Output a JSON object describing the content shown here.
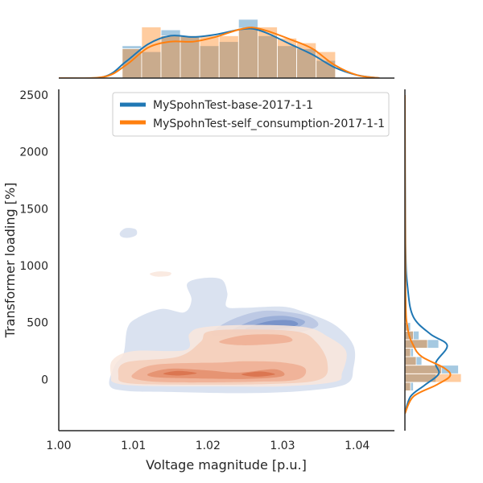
{
  "chart_data": {
    "type": "jointplot-kde",
    "xlabel": "Voltage magnitude [p.u.]",
    "ylabel": "Transformer loading [%]",
    "xlim": [
      1.0,
      1.045
    ],
    "ylim": [
      -450,
      2550
    ],
    "x_ticks": [
      1.0,
      1.01,
      1.02,
      1.03,
      1.04
    ],
    "x_tick_labels": [
      "1.00",
      "1.01",
      "1.02",
      "1.03",
      "1.04"
    ],
    "y_ticks": [
      0,
      500,
      1000,
      1500,
      2000,
      2500
    ],
    "y_tick_labels": [
      "0",
      "500",
      "1000",
      "1500",
      "2000",
      "2500"
    ],
    "legend": {
      "position": "top-center"
    },
    "grid": false,
    "series": [
      {
        "name": "MySpohnTest-base-2017-1-1",
        "color": "#1f77b4",
        "kde_color": "#4a6fb5",
        "x_hist": {
          "bin_edges": [
            1.0085,
            1.0111,
            1.0137,
            1.0163,
            1.0189,
            1.0215,
            1.0241,
            1.0267,
            1.0293,
            1.0319,
            1.0345,
            1.0371
          ],
          "heights": [
            0.55,
            0.45,
            0.82,
            0.72,
            0.55,
            0.62,
            1.0,
            0.72,
            0.55,
            0.5,
            0.3
          ]
        },
        "y_hist": {
          "bin_edges": [
            -100,
            -25,
            50,
            125,
            200,
            275,
            350,
            425,
            500
          ],
          "widths": [
            0.15,
            0.55,
            0.95,
            0.3,
            0.15,
            0.6,
            0.25,
            0.1
          ]
        },
        "x_kde": [
          [
            1.0,
            0.0
          ],
          [
            1.006,
            0.02
          ],
          [
            1.009,
            0.28
          ],
          [
            1.012,
            0.58
          ],
          [
            1.015,
            0.72
          ],
          [
            1.018,
            0.7
          ],
          [
            1.021,
            0.74
          ],
          [
            1.024,
            0.82
          ],
          [
            1.026,
            0.84
          ],
          [
            1.028,
            0.76
          ],
          [
            1.031,
            0.58
          ],
          [
            1.034,
            0.4
          ],
          [
            1.037,
            0.18
          ],
          [
            1.04,
            0.05
          ],
          [
            1.043,
            0.0
          ]
        ],
        "y_kde": [
          [
            -300,
            0.0
          ],
          [
            -150,
            0.1
          ],
          [
            -50,
            0.35
          ],
          [
            50,
            0.6
          ],
          [
            150,
            0.55
          ],
          [
            300,
            0.75
          ],
          [
            400,
            0.45
          ],
          [
            550,
            0.15
          ],
          [
            800,
            0.05
          ],
          [
            1200,
            0.01
          ],
          [
            2500,
            0.0
          ]
        ]
      },
      {
        "name": "MySpohnTest-self_consumption-2017-1-1",
        "color": "#ff7f0e",
        "kde_color": "#e3764a",
        "x_hist": {
          "bin_edges": [
            1.0085,
            1.0111,
            1.0137,
            1.0163,
            1.0189,
            1.0215,
            1.0241,
            1.0267,
            1.0293,
            1.0319,
            1.0345,
            1.0371
          ],
          "heights": [
            0.5,
            0.87,
            0.72,
            0.72,
            0.72,
            0.72,
            0.85,
            0.87,
            0.68,
            0.6,
            0.45
          ]
        },
        "y_hist": {
          "bin_edges": [
            -100,
            -25,
            50,
            125,
            200,
            275,
            350,
            425,
            500
          ],
          "widths": [
            0.1,
            1.0,
            0.65,
            0.2,
            0.1,
            0.4,
            0.15,
            0.05
          ]
        },
        "x_kde": [
          [
            1.0,
            0.0
          ],
          [
            1.006,
            0.02
          ],
          [
            1.009,
            0.22
          ],
          [
            1.012,
            0.52
          ],
          [
            1.015,
            0.62
          ],
          [
            1.018,
            0.62
          ],
          [
            1.021,
            0.7
          ],
          [
            1.024,
            0.82
          ],
          [
            1.026,
            0.86
          ],
          [
            1.028,
            0.8
          ],
          [
            1.031,
            0.66
          ],
          [
            1.034,
            0.5
          ],
          [
            1.037,
            0.22
          ],
          [
            1.04,
            0.05
          ],
          [
            1.043,
            0.0
          ]
        ],
        "y_kde": [
          [
            -300,
            0.0
          ],
          [
            -150,
            0.15
          ],
          [
            -50,
            0.55
          ],
          [
            30,
            0.8
          ],
          [
            100,
            0.7
          ],
          [
            200,
            0.3
          ],
          [
            300,
            0.15
          ],
          [
            450,
            0.05
          ],
          [
            800,
            0.01
          ],
          [
            2500,
            0.0
          ]
        ]
      }
    ],
    "kde2d": [
      {
        "series": "MySpohnTest-base-2017-1-1",
        "levels": [
          {
            "color": "#d6dfee",
            "blobs": [
              [
                [
                  1.0068,
                  -50
                ],
                [
                  1.0075,
                  120
                ],
                [
                  1.0087,
                  230
                ],
                [
                  1.0092,
                  450
                ],
                [
                  1.0105,
                  540
                ],
                [
                  1.0138,
                  620
                ],
                [
                  1.0168,
                  590
                ],
                [
                  1.0178,
                  700
                ],
                [
                  1.0172,
                  840
                ],
                [
                  1.0192,
                  890
                ],
                [
                  1.0218,
                  880
                ],
                [
                  1.0226,
                  760
                ],
                [
                  1.0225,
                  640
                ],
                [
                  1.0248,
                  630
                ],
                [
                  1.03,
                  640
                ],
                [
                  1.033,
                  590
                ],
                [
                  1.037,
                  480
                ],
                [
                  1.0395,
                  300
                ],
                [
                  1.0395,
                  100
                ],
                [
                  1.0385,
                  -40
                ],
                [
                  1.033,
                  -100
                ],
                [
                  1.025,
                  -120
                ],
                [
                  1.015,
                  -110
                ],
                [
                  1.009,
                  -100
                ]
              ],
              [
                [
                  1.0082,
                  1290
                ],
                [
                  1.009,
                  1330
                ],
                [
                  1.0103,
                  1320
                ],
                [
                  1.0104,
                  1270
                ],
                [
                  1.0093,
                  1245
                ],
                [
                  1.0084,
                  1255
                ]
              ]
            ]
          },
          {
            "color": "#b9c7e2",
            "blobs": [
              [
                [
                  1.0205,
                  400
                ],
                [
                  1.023,
                  520
                ],
                [
                  1.027,
                  600
                ],
                [
                  1.031,
                  590
                ],
                [
                  1.034,
                  540
                ],
                [
                  1.0345,
                  460
                ],
                [
                  1.03,
                  390
                ],
                [
                  1.024,
                  380
                ]
              ]
            ]
          },
          {
            "color": "#97acd6",
            "blobs": [
              [
                [
                  1.023,
                  420
                ],
                [
                  1.0265,
                  530
                ],
                [
                  1.03,
                  560
                ],
                [
                  1.033,
                  510
                ],
                [
                  1.031,
                  440
                ],
                [
                  1.026,
                  410
                ]
              ]
            ]
          },
          {
            "color": "#7590c8",
            "blobs": [
              [
                [
                  1.025,
                  440
                ],
                [
                  1.028,
                  510
                ],
                [
                  1.031,
                  520
                ],
                [
                  1.032,
                  480
                ],
                [
                  1.029,
                  440
                ]
              ]
            ]
          }
        ]
      },
      {
        "series": "MySpohnTest-self_consumption-2017-1-1",
        "levels": [
          {
            "color": "#f9e6dc",
            "blobs": [
              [
                [
                  1.007,
                  30
                ],
                [
                  1.0072,
                  170
                ],
                [
                  1.01,
                  250
                ],
                [
                  1.017,
                  260
                ],
                [
                  1.0175,
                  400
                ],
                [
                  1.0195,
                  460
                ],
                [
                  1.026,
                  480
                ],
                [
                  1.033,
                  460
                ],
                [
                  1.036,
                  380
                ],
                [
                  1.0385,
                  250
                ],
                [
                  1.038,
                  60
                ],
                [
                  1.037,
                  -20
                ],
                [
                  1.03,
                  -60
                ],
                [
                  1.02,
                  -60
                ],
                [
                  1.011,
                  -55
                ],
                [
                  1.0075,
                  -30
                ]
              ],
              [
                [
                  1.0122,
                  930
                ],
                [
                  1.0135,
                  950
                ],
                [
                  1.015,
                  940
                ],
                [
                  1.0147,
                  910
                ],
                [
                  1.013,
                  905
                ]
              ]
            ]
          },
          {
            "color": "#f4cdb9",
            "blobs": [
              [
                [
                  1.008,
                  30
                ],
                [
                  1.009,
                  150
                ],
                [
                  1.016,
                  200
                ],
                [
                  1.019,
                  330
                ],
                [
                  1.02,
                  420
                ],
                [
                  1.025,
                  440
                ],
                [
                  1.032,
                  420
                ],
                [
                  1.0345,
                  330
                ],
                [
                  1.036,
                  150
                ],
                [
                  1.035,
                  0
                ],
                [
                  1.028,
                  -40
                ],
                [
                  1.015,
                  -45
                ],
                [
                  1.009,
                  -30
                ]
              ]
            ]
          },
          {
            "color": "#eeae93",
            "blobs": [
              [
                [
                  1.01,
                  50
                ],
                [
                  1.013,
                  130
                ],
                [
                  1.022,
                  150
                ],
                [
                  1.025,
                  160
                ],
                [
                  1.03,
                  150
                ],
                [
                  1.033,
                  100
                ],
                [
                  1.032,
                  0
                ],
                [
                  1.026,
                  -20
                ],
                [
                  1.015,
                  -25
                ],
                [
                  1.0105,
                  0
                ]
              ],
              [
                [
                  1.0215,
                  330
                ],
                [
                  1.025,
                  390
                ],
                [
                  1.03,
                  390
                ],
                [
                  1.031,
                  330
                ],
                [
                  1.025,
                  300
                ]
              ]
            ]
          },
          {
            "color": "#e48e6c",
            "blobs": [
              [
                [
                  1.012,
                  50
                ],
                [
                  1.015,
                  95
                ],
                [
                  1.02,
                  80
                ],
                [
                  1.024,
                  60
                ],
                [
                  1.029,
                  90
                ],
                [
                  1.03,
                  30
                ],
                [
                  1.025,
                  5
                ],
                [
                  1.018,
                  10
                ],
                [
                  1.013,
                  20
                ]
              ]
            ]
          },
          {
            "color": "#d8714b",
            "blobs": [
              [
                [
                  1.014,
                  50
                ],
                [
                  1.016,
                  75
                ],
                [
                  1.0185,
                  55
                ],
                [
                  1.016,
                  35
                ]
              ],
              [
                [
                  1.0245,
                  45
                ],
                [
                  1.027,
                  70
                ],
                [
                  1.029,
                  45
                ],
                [
                  1.0265,
                  25
                ]
              ]
            ]
          }
        ]
      }
    ]
  }
}
